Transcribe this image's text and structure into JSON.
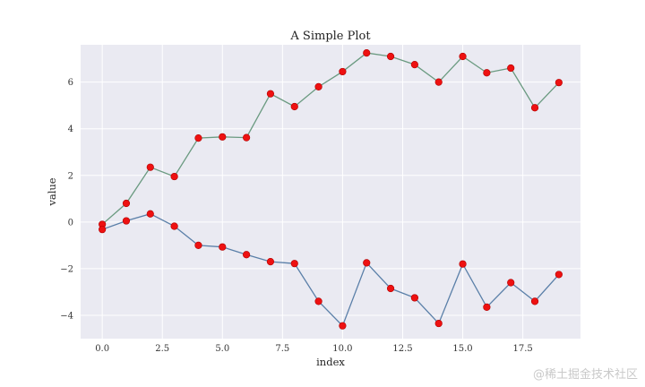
{
  "chart_data": {
    "type": "line",
    "title": "A Simple Plot",
    "xlabel": "index",
    "ylabel": "value",
    "xlim": [
      -0.9,
      19.9
    ],
    "ylim": [
      -5.0,
      7.6
    ],
    "xticks": [
      0.0,
      2.5,
      5.0,
      7.5,
      10.0,
      12.5,
      15.0,
      17.5
    ],
    "xtick_labels": [
      "0.0",
      "2.5",
      "5.0",
      "7.5",
      "10.0",
      "12.5",
      "15.0",
      "17.5"
    ],
    "yticks": [
      -4,
      -2,
      0,
      2,
      4,
      6
    ],
    "ytick_labels": [
      "−4",
      "−2",
      "0",
      "2",
      "4",
      "6"
    ],
    "grid": true,
    "x": [
      0,
      1,
      2,
      3,
      4,
      5,
      6,
      7,
      8,
      9,
      10,
      11,
      12,
      13,
      14,
      15,
      16,
      17,
      18,
      19
    ],
    "series": [
      {
        "color": "#6a9a80",
        "marker_color": "#ee1111",
        "values": [
          -0.1,
          0.8,
          2.35,
          1.95,
          3.6,
          3.65,
          3.62,
          5.5,
          4.95,
          5.8,
          6.45,
          7.25,
          7.1,
          6.75,
          6.0,
          7.1,
          6.4,
          6.6,
          4.9,
          5.98
        ]
      },
      {
        "color": "#5a7fa8",
        "marker_color": "#ee1111",
        "values": [
          -0.32,
          0.05,
          0.35,
          -0.18,
          -1.0,
          -1.07,
          -1.4,
          -1.7,
          -1.78,
          -3.4,
          -4.45,
          -1.75,
          -2.85,
          -3.25,
          -4.35,
          -1.8,
          -3.65,
          -2.6,
          -3.4,
          -2.25
        ]
      }
    ],
    "background_color": "#eaeaf2",
    "grid_color": "#ffffff"
  },
  "watermark": "@稀土掘金技术社区"
}
